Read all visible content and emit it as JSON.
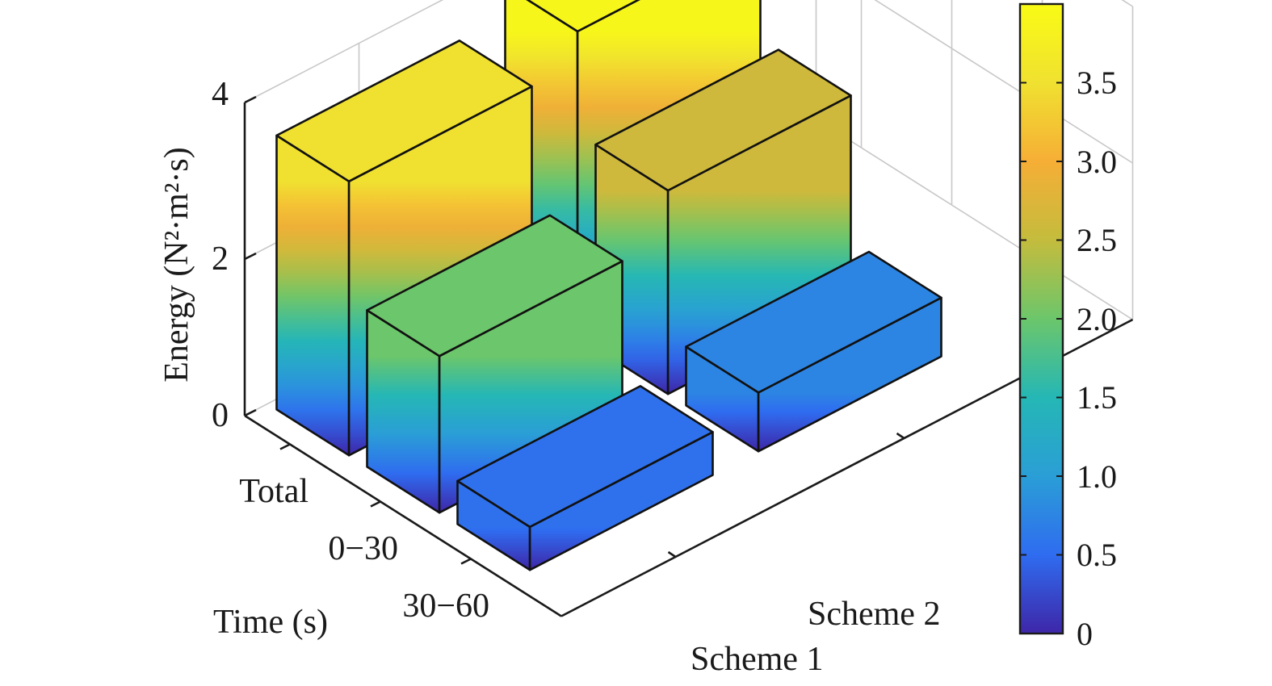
{
  "chart_data": {
    "type": "bar3d",
    "x_categories": [
      "Scheme 1",
      "Scheme 2"
    ],
    "y_categories": [
      "Total",
      "0−30",
      "30−60"
    ],
    "series": [
      {
        "name": "Scheme 1",
        "values": [
          3.5,
          2.0,
          0.55
        ]
      },
      {
        "name": "Scheme 2",
        "values": [
          3.9,
          2.6,
          0.75
        ]
      }
    ],
    "zlabel": "Energy (N²·m²·s)",
    "ylabel": "Time (s)",
    "xlabel": "",
    "zlim": [
      0,
      4
    ],
    "z_ticks": [
      "0",
      "2",
      "4"
    ],
    "grid": true,
    "colormap": "parula",
    "colorbar": {
      "range": [
        0,
        4
      ],
      "ticks": [
        "0",
        "0.5",
        "1.0",
        "1.5",
        "2.0",
        "2.5",
        "3.0",
        "3.5"
      ]
    },
    "colors": [
      "#3e26a8",
      "#2f6cf0",
      "#2a9ed6",
      "#25b7b5",
      "#6cc66b",
      "#c4bc3d",
      "#f6ae36",
      "#f0e130",
      "#f9fb15"
    ]
  }
}
